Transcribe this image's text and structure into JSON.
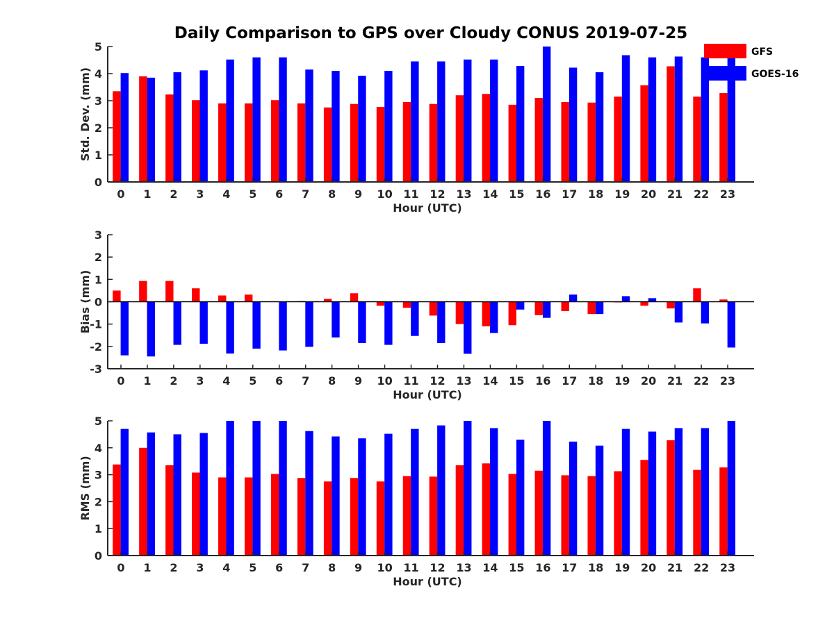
{
  "title": "Daily Comparison to GPS over Cloudy CONUS 2019-07-25",
  "legend": {
    "placement": "top-right, outside plot area",
    "entries": [
      {
        "name": "GFS",
        "color": "#ff0000"
      },
      {
        "name": "GOES-16",
        "color": "#0000ff"
      }
    ]
  },
  "chart_data": [
    {
      "type": "bar",
      "ylabel": "Std. Dev. (mm)",
      "xlabel": "Hour (UTC)",
      "ylim": [
        0,
        5
      ],
      "yticks": [
        0,
        1,
        2,
        3,
        4,
        5
      ],
      "categories": [
        "0",
        "1",
        "2",
        "3",
        "4",
        "5",
        "6",
        "7",
        "8",
        "9",
        "10",
        "11",
        "12",
        "13",
        "14",
        "15",
        "16",
        "17",
        "18",
        "19",
        "20",
        "21",
        "22",
        "23"
      ],
      "grid": false,
      "series": [
        {
          "name": "GFS",
          "color": "#ff0000",
          "values": [
            3.35,
            3.9,
            3.23,
            3.02,
            2.9,
            2.9,
            3.02,
            2.9,
            2.75,
            2.88,
            2.77,
            2.95,
            2.88,
            3.2,
            3.25,
            2.85,
            3.1,
            2.95,
            2.93,
            3.15,
            3.57,
            4.27,
            3.15,
            3.28
          ]
        },
        {
          "name": "GOES-16",
          "color": "#0000ff",
          "values": [
            4.02,
            3.85,
            4.05,
            4.12,
            4.52,
            4.6,
            4.6,
            4.15,
            4.1,
            3.92,
            4.1,
            4.45,
            4.45,
            4.52,
            4.52,
            4.28,
            5.0,
            4.22,
            4.05,
            4.68,
            4.6,
            4.63,
            4.6,
            4.6
          ]
        }
      ]
    },
    {
      "type": "bar",
      "ylabel": "Bias (mm)",
      "xlabel": "Hour (UTC)",
      "ylim": [
        -3,
        3
      ],
      "yticks": [
        -3,
        -2,
        -1,
        0,
        1,
        2,
        3
      ],
      "categories": [
        "0",
        "1",
        "2",
        "3",
        "4",
        "5",
        "6",
        "7",
        "8",
        "9",
        "10",
        "11",
        "12",
        "13",
        "14",
        "15",
        "16",
        "17",
        "18",
        "19",
        "20",
        "21",
        "22",
        "23"
      ],
      "grid": false,
      "zero_line": true,
      "series": [
        {
          "name": "GFS",
          "color": "#ff0000",
          "values": [
            0.5,
            0.93,
            0.93,
            0.6,
            0.28,
            0.32,
            0.0,
            0.03,
            0.13,
            0.38,
            -0.18,
            -0.27,
            -0.62,
            -1.0,
            -1.1,
            -1.05,
            -0.6,
            -0.42,
            -0.55,
            -0.03,
            -0.18,
            -0.3,
            0.6,
            0.1
          ]
        },
        {
          "name": "GOES-16",
          "color": "#0000ff",
          "values": [
            -2.4,
            -2.45,
            -1.93,
            -1.88,
            -2.32,
            -2.1,
            -2.18,
            -2.02,
            -1.6,
            -1.85,
            -1.93,
            -1.53,
            -1.85,
            -2.33,
            -1.4,
            -0.35,
            -0.72,
            0.32,
            -0.55,
            0.25,
            0.16,
            -0.93,
            -0.97,
            -2.05
          ]
        }
      ]
    },
    {
      "type": "bar",
      "ylabel": "RMS (mm)",
      "xlabel": "Hour (UTC)",
      "ylim": [
        0,
        5
      ],
      "yticks": [
        0,
        1,
        2,
        3,
        4,
        5
      ],
      "categories": [
        "0",
        "1",
        "2",
        "3",
        "4",
        "5",
        "6",
        "7",
        "8",
        "9",
        "10",
        "11",
        "12",
        "13",
        "14",
        "15",
        "16",
        "17",
        "18",
        "19",
        "20",
        "21",
        "22",
        "23"
      ],
      "grid": false,
      "series": [
        {
          "name": "GFS",
          "color": "#ff0000",
          "values": [
            3.38,
            4.0,
            3.35,
            3.08,
            2.9,
            2.9,
            3.03,
            2.88,
            2.75,
            2.88,
            2.75,
            2.95,
            2.93,
            3.35,
            3.42,
            3.03,
            3.15,
            2.98,
            2.95,
            3.13,
            3.55,
            4.28,
            3.18,
            3.27
          ]
        },
        {
          "name": "GOES-16",
          "color": "#0000ff",
          "values": [
            4.7,
            4.57,
            4.5,
            4.55,
            5.0,
            5.0,
            5.0,
            4.62,
            4.42,
            4.35,
            4.52,
            4.7,
            4.83,
            5.0,
            4.73,
            4.3,
            5.0,
            4.23,
            4.08,
            4.7,
            4.6,
            4.73,
            4.73,
            5.0
          ]
        }
      ]
    }
  ]
}
